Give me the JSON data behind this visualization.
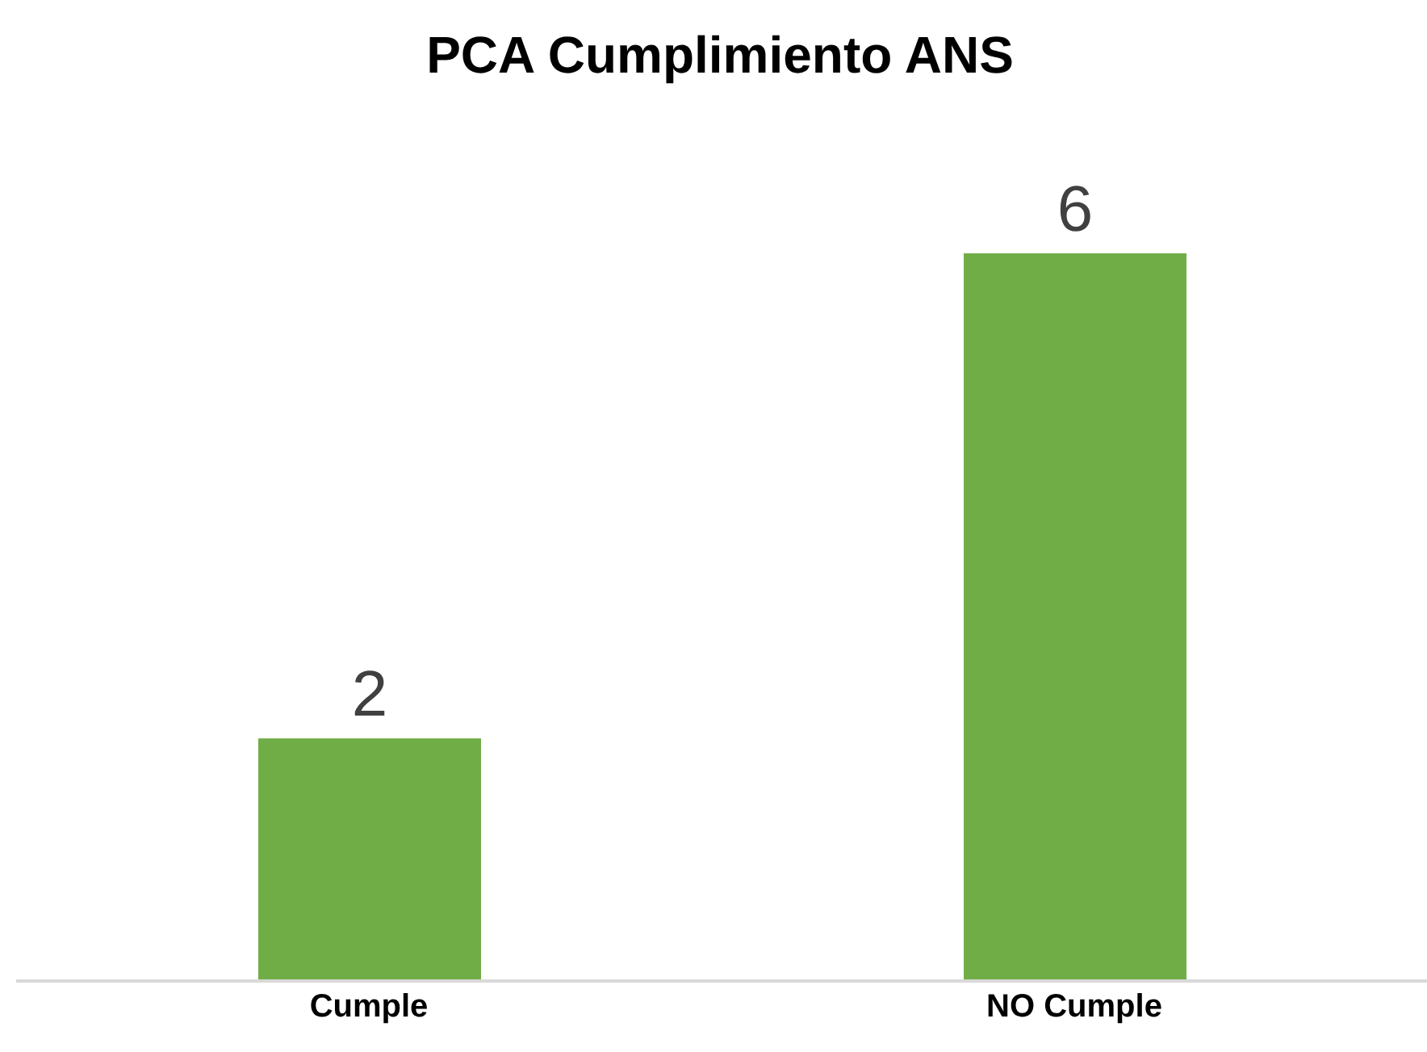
{
  "chart_data": {
    "type": "bar",
    "title": "PCA Cumplimiento ANS",
    "categories": [
      "Cumple",
      "NO Cumple"
    ],
    "values": [
      2,
      6
    ],
    "color": "#70ad47",
    "data_labels": true
  }
}
